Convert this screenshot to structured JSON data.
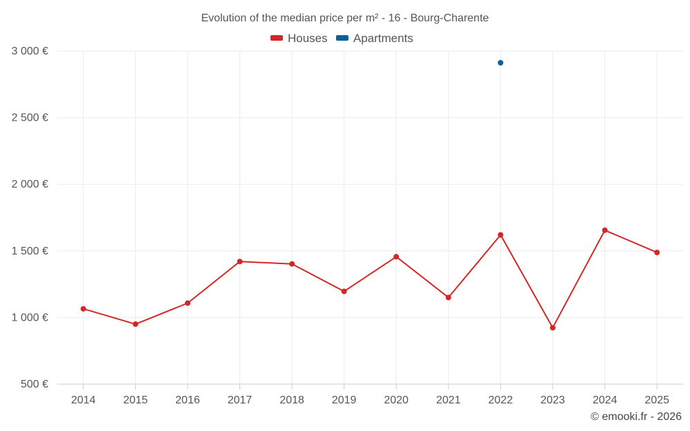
{
  "chart_data": {
    "type": "line",
    "title": "Evolution of the median price per m² - 16 - Bourg-Charente",
    "categories": [
      "2014",
      "2015",
      "2016",
      "2017",
      "2018",
      "2019",
      "2020",
      "2021",
      "2022",
      "2023",
      "2024",
      "2025"
    ],
    "ylim": [
      500,
      3000
    ],
    "yticks": [
      500,
      1000,
      1500,
      2000,
      2500,
      3000
    ],
    "ytick_labels": [
      "500 €",
      "1 000 €",
      "1 500 €",
      "2 000 €",
      "2 500 €",
      "3 000 €"
    ],
    "xlabel": "",
    "ylabel": "",
    "grid": true,
    "legend_position": "top-center",
    "series": [
      {
        "name": "Houses",
        "color": "#d32626",
        "values": [
          1065,
          950,
          1108,
          1420,
          1402,
          1196,
          1456,
          1150,
          1620,
          923,
          1655,
          1488
        ]
      },
      {
        "name": "Apartments",
        "color": "#0a5e99",
        "values": [
          null,
          null,
          null,
          null,
          null,
          null,
          null,
          null,
          2912,
          null,
          null,
          null
        ]
      }
    ]
  },
  "credit": "© emooki.fr - 2026"
}
